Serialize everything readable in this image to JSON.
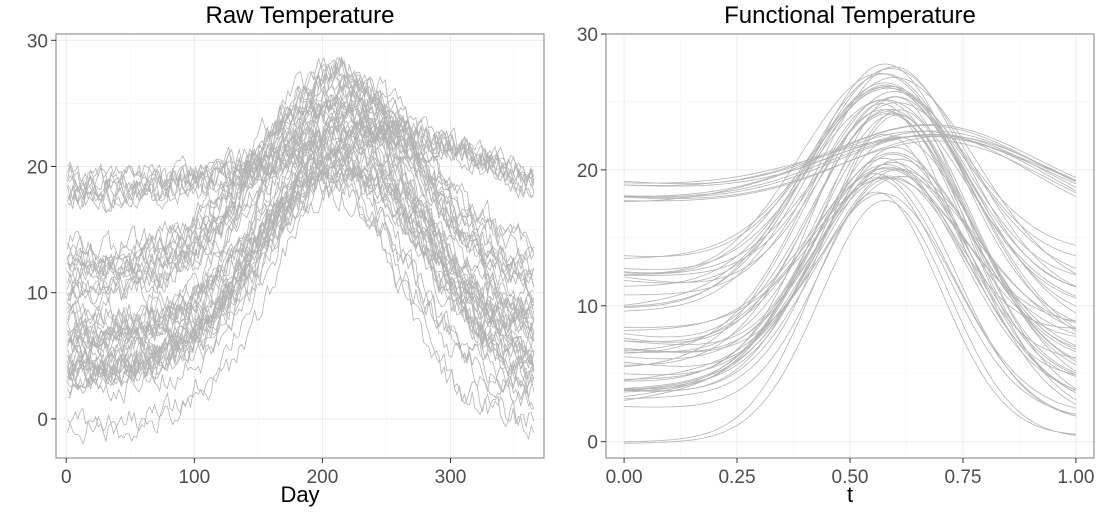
{
  "figure": {
    "curve_color": "#b3b3b3",
    "background": "#ffffff"
  },
  "chart_data": [
    {
      "type": "line",
      "title": "Raw Temperature",
      "xlabel": "Day",
      "ylabel": "",
      "xlim": [
        -8,
        373
      ],
      "ylim": [
        -3.1,
        30.5
      ],
      "x_ticks": [
        0,
        100,
        200,
        300
      ],
      "x_tick_labels": [
        "0",
        "100",
        "200",
        "300"
      ],
      "y_ticks": [
        0,
        10,
        20,
        30
      ],
      "y_tick_labels": [
        "0",
        "10",
        "20",
        "30"
      ],
      "grid": true,
      "legend": "none",
      "series_count": 57,
      "x_range": [
        1,
        365
      ],
      "noisy": true,
      "curve_groups": [
        {
          "count": 10,
          "start": [
            17.6,
            19.2
          ],
          "peak": [
            24.0,
            25.0
          ],
          "peak_day": 255,
          "end": [
            18.0,
            19.5
          ],
          "width": 90
        },
        {
          "count": 15,
          "start": [
            9.0,
            14.2
          ],
          "peak": [
            25.5,
            28.8
          ],
          "peak_day": 215,
          "end": [
            8.0,
            14.5
          ],
          "width": 62
        },
        {
          "count": 26,
          "start": [
            3.0,
            8.5
          ],
          "peak": [
            19.5,
            26.0
          ],
          "peak_day": 215,
          "end": [
            2.5,
            9.0
          ],
          "width": 60
        },
        {
          "count": 4,
          "start": [
            2.5,
            4.0
          ],
          "peak": [
            18.5,
            20.0
          ],
          "peak_day": 208,
          "end": [
            1.0,
            3.0
          ],
          "width": 55
        },
        {
          "count": 2,
          "start": [
            -1.0,
            0.5
          ],
          "peak": [
            17.8,
            19.0
          ],
          "peak_day": 205,
          "end": [
            -0.5,
            1.2
          ],
          "width": 48
        }
      ]
    },
    {
      "type": "line",
      "title": "Functional Temperature",
      "xlabel": "t",
      "ylabel": "",
      "xlim": [
        -0.04,
        1.04
      ],
      "ylim": [
        -1.2,
        30.0
      ],
      "x_ticks": [
        0.0,
        0.25,
        0.5,
        0.75,
        1.0
      ],
      "x_tick_labels": [
        "0.00",
        "0.25",
        "0.50",
        "0.75",
        "1.00"
      ],
      "y_ticks": [
        0,
        10,
        20,
        30
      ],
      "y_tick_labels": [
        "0",
        "10",
        "20",
        "30"
      ],
      "grid": true,
      "legend": "none",
      "series_count": 57,
      "x_range": [
        0,
        1
      ],
      "noisy": false,
      "curve_groups": [
        {
          "count": 10,
          "start": [
            17.6,
            19.2
          ],
          "peak": [
            24.0,
            25.0
          ],
          "peak_day": 255,
          "end": [
            18.0,
            19.5
          ],
          "width": 90
        },
        {
          "count": 15,
          "start": [
            9.0,
            14.2
          ],
          "peak": [
            25.5,
            28.5
          ],
          "peak_day": 215,
          "end": [
            8.0,
            14.5
          ],
          "width": 62
        },
        {
          "count": 26,
          "start": [
            3.0,
            8.5
          ],
          "peak": [
            19.5,
            26.0
          ],
          "peak_day": 215,
          "end": [
            2.5,
            9.0
          ],
          "width": 60
        },
        {
          "count": 4,
          "start": [
            2.5,
            4.0
          ],
          "peak": [
            18.5,
            20.0
          ],
          "peak_day": 208,
          "end": [
            1.0,
            3.0
          ],
          "width": 55
        },
        {
          "count": 2,
          "start": [
            -0.2,
            0.4
          ],
          "peak": [
            17.8,
            18.5
          ],
          "peak_day": 205,
          "end": [
            0.3,
            1.0
          ],
          "width": 48
        }
      ]
    }
  ]
}
